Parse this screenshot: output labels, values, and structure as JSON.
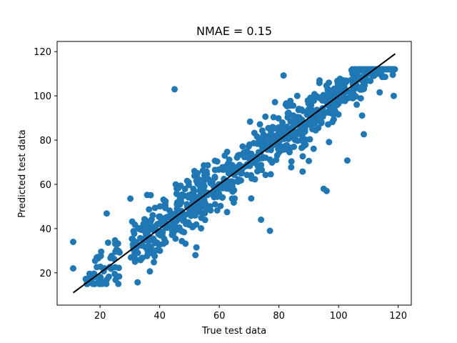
{
  "chart_data": {
    "type": "scatter",
    "title": "NMAE = 0.15",
    "xlabel": "True test data",
    "ylabel": "Predicted test data",
    "xlim": [
      5.6,
      124.4
    ],
    "ylim": [
      5.4,
      124.6
    ],
    "xticks": [
      20,
      40,
      60,
      80,
      100,
      120
    ],
    "yticks": [
      20,
      40,
      60,
      80,
      100,
      120
    ],
    "grid": false,
    "point_color": "#1f77b4",
    "line_color": "#000000",
    "reference_line": {
      "x": [
        11,
        119
      ],
      "y": [
        11,
        119
      ]
    },
    "outliers": [
      {
        "x": 11,
        "y": 34
      },
      {
        "x": 11,
        "y": 22
      },
      {
        "x": 45,
        "y": 103
      },
      {
        "x": 19.5,
        "y": 16
      },
      {
        "x": 95,
        "y": 58
      },
      {
        "x": 96,
        "y": 57
      },
      {
        "x": 118.5,
        "y": 100
      },
      {
        "x": 74,
        "y": 44
      },
      {
        "x": 77,
        "y": 39
      },
      {
        "x": 52,
        "y": 28
      }
    ],
    "series_points": 900
  }
}
